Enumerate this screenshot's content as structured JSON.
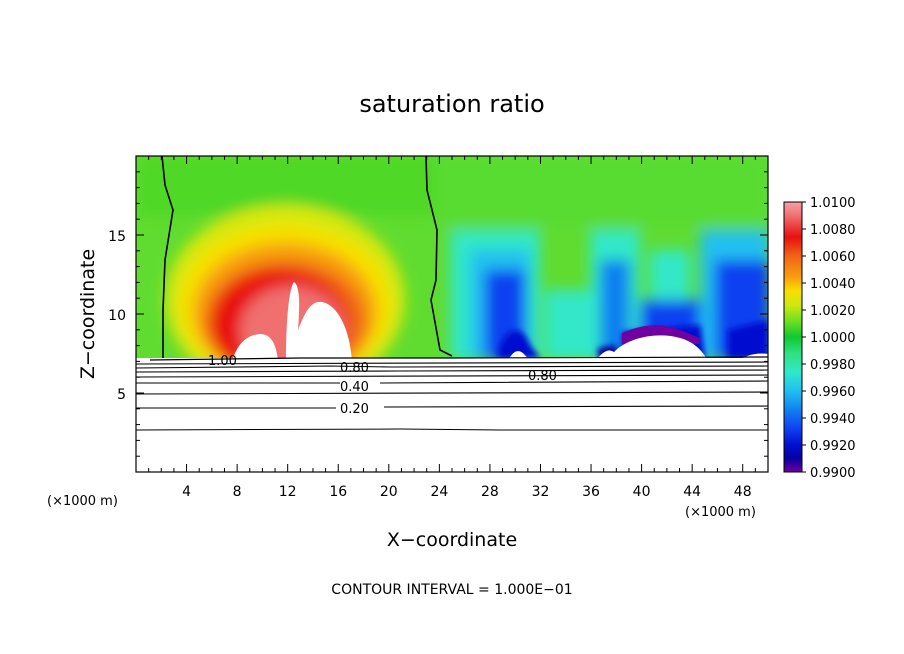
{
  "chart_data": {
    "type": "contour",
    "title": "saturation ratio",
    "xlabel": "X−coordinate",
    "ylabel": "Z−coordinate",
    "x_unit_left": "(×1000 m)",
    "x_unit_right": "(×1000 m)",
    "xlim": [
      0,
      50
    ],
    "ylim": [
      0,
      20
    ],
    "x_ticks": [
      4,
      8,
      12,
      16,
      20,
      24,
      28,
      32,
      36,
      40,
      44,
      48
    ],
    "y_ticks": [
      5,
      10,
      15
    ],
    "colorbar": {
      "levels": [
        "1.0100",
        "1.0080",
        "1.0060",
        "1.0040",
        "1.0020",
        "1.0000",
        "0.9980",
        "0.9960",
        "0.9940",
        "0.9920",
        "0.9900"
      ],
      "colors": [
        "#f6a0a8",
        "#f07070",
        "#e81010",
        "#f06418",
        "#f8a010",
        "#f8e000",
        "#d0e810",
        "#70e020",
        "#10c830",
        "#30e080",
        "#30e8c8",
        "#20c0f0",
        "#1080f0",
        "#1040f0",
        "#0010d0",
        "#0800a0",
        "#7000a0"
      ]
    },
    "contour_labels": [
      "1.00",
      "0.80",
      "0.40",
      "0.20",
      "0.80"
    ],
    "contour_interval_text": "CONTOUR INTERVAL = 1.000E−01"
  }
}
